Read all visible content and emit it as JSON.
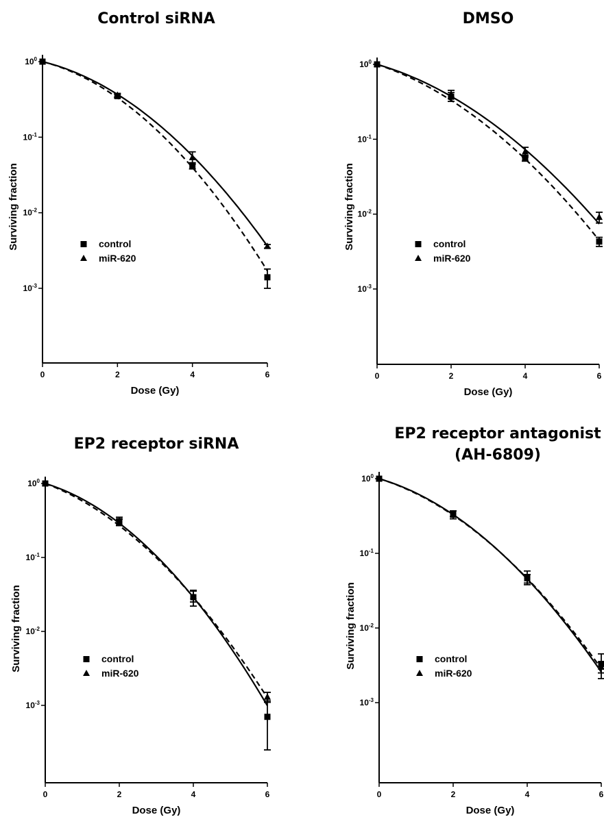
{
  "chart_data": [
    {
      "type": "line",
      "title": "Control siRNA",
      "title2": "",
      "xlabel": "Dose (Gy)",
      "ylabel": "Surviving fraction",
      "y_scale": "log",
      "xlim": [
        0,
        6
      ],
      "ylim": [
        0.0001,
        1
      ],
      "x_ticks": [
        "0",
        "2",
        "4",
        "6"
      ],
      "y_ticks": [
        {
          "base": "10",
          "exp": "0"
        },
        {
          "base": "10",
          "exp": "-1"
        },
        {
          "base": "10",
          "exp": "-2"
        },
        {
          "base": "10",
          "exp": "-3"
        }
      ],
      "legend_position": "middle-left",
      "x": [
        0,
        2,
        4,
        6
      ],
      "series": [
        {
          "name": "control",
          "marker": "square",
          "line": "dashed",
          "values": [
            1.0,
            0.35,
            0.042,
            0.0014
          ],
          "errors": [
            0.0,
            0.02,
            0.004,
            0.0004
          ],
          "fit": [
            1.0,
            0.33,
            0.04,
            0.0017
          ]
        },
        {
          "name": "miR-620",
          "marker": "triangle",
          "line": "solid",
          "values": [
            1.0,
            0.36,
            0.054,
            0.0036
          ],
          "errors": [
            0.0,
            0.02,
            0.01,
            0.0002
          ],
          "fit": [
            1.0,
            0.36,
            0.058,
            0.0036
          ]
        }
      ]
    },
    {
      "type": "line",
      "title": "DMSO",
      "title2": "",
      "xlabel": "Dose (Gy)",
      "ylabel": "Surviving fraction",
      "y_scale": "log",
      "xlim": [
        0,
        6
      ],
      "ylim": [
        0.0001,
        1
      ],
      "x_ticks": [
        "0",
        "2",
        "4",
        "6"
      ],
      "y_ticks": [
        {
          "base": "10",
          "exp": "0"
        },
        {
          "base": "10",
          "exp": "-1"
        },
        {
          "base": "10",
          "exp": "-2"
        },
        {
          "base": "10",
          "exp": "-3"
        }
      ],
      "legend_position": "middle-left",
      "x": [
        0,
        2,
        4,
        6
      ],
      "series": [
        {
          "name": "control",
          "marker": "square",
          "line": "dashed",
          "values": [
            1.0,
            0.37,
            0.056,
            0.0043
          ],
          "errors": [
            0.0,
            0.05,
            0.005,
            0.0006
          ],
          "fit": [
            1.0,
            0.34,
            0.053,
            0.0045
          ]
        },
        {
          "name": "miR-620",
          "marker": "triangle",
          "line": "solid",
          "values": [
            1.0,
            0.4,
            0.068,
            0.0091
          ],
          "errors": [
            0.0,
            0.05,
            0.01,
            0.0015
          ],
          "fit": [
            1.0,
            0.39,
            0.07,
            0.0075
          ]
        }
      ]
    },
    {
      "type": "line",
      "title": "EP2 receptor siRNA",
      "title2": "",
      "xlabel": "Dose (Gy)",
      "ylabel": "Surviving fraction",
      "y_scale": "log",
      "xlim": [
        0,
        6
      ],
      "ylim": [
        0.0001,
        1
      ],
      "x_ticks": [
        "0",
        "2",
        "4",
        "6"
      ],
      "y_ticks": [
        {
          "base": "10",
          "exp": "0"
        },
        {
          "base": "10",
          "exp": "-1"
        },
        {
          "base": "10",
          "exp": "-2"
        },
        {
          "base": "10",
          "exp": "-3"
        }
      ],
      "legend_position": "middle-left",
      "x": [
        0,
        2,
        4,
        6
      ],
      "series": [
        {
          "name": "control",
          "marker": "square",
          "line": "dashed",
          "values": [
            1.0,
            0.31,
            0.029,
            0.0007
          ],
          "errors": [
            0.0,
            0.04,
            0.007,
            0.00045
          ],
          "fit": [
            1.0,
            0.29,
            0.027,
            0.0013
          ]
        },
        {
          "name": "miR-620",
          "marker": "triangle",
          "line": "solid",
          "values": [
            1.0,
            0.3,
            0.03,
            0.0013
          ],
          "errors": [
            0.0,
            0.03,
            0.005,
            0.0002
          ],
          "fit": [
            1.0,
            0.3,
            0.028,
            0.001
          ]
        }
      ]
    },
    {
      "type": "line",
      "title": "EP2 receptor  antagonist",
      "title2": "(AH-6809)",
      "xlabel": "Dose (Gy)",
      "ylabel": "Surviving fraction",
      "y_scale": "log",
      "xlim": [
        0,
        6
      ],
      "ylim": [
        0.0001,
        1
      ],
      "x_ticks": [
        "0",
        "2",
        "4",
        "6"
      ],
      "y_ticks": [
        {
          "base": "10",
          "exp": "0"
        },
        {
          "base": "10",
          "exp": "-1"
        },
        {
          "base": "10",
          "exp": "-2"
        },
        {
          "base": "10",
          "exp": "-3"
        }
      ],
      "legend_position": "middle-left",
      "x": [
        0,
        2,
        4,
        6
      ],
      "series": [
        {
          "name": "control",
          "marker": "square",
          "line": "dashed",
          "values": [
            1.0,
            0.33,
            0.048,
            0.0033
          ],
          "errors": [
            0.0,
            0.04,
            0.01,
            0.0012
          ],
          "fit": [
            1.0,
            0.34,
            0.044,
            0.0029
          ]
        },
        {
          "name": "miR-620",
          "marker": "triangle",
          "line": "solid",
          "values": [
            1.0,
            0.34,
            0.046,
            0.003
          ],
          "errors": [
            0.0,
            0.03,
            0.006,
            0.0005
          ],
          "fit": [
            1.0,
            0.34,
            0.044,
            0.0026
          ]
        }
      ]
    }
  ]
}
